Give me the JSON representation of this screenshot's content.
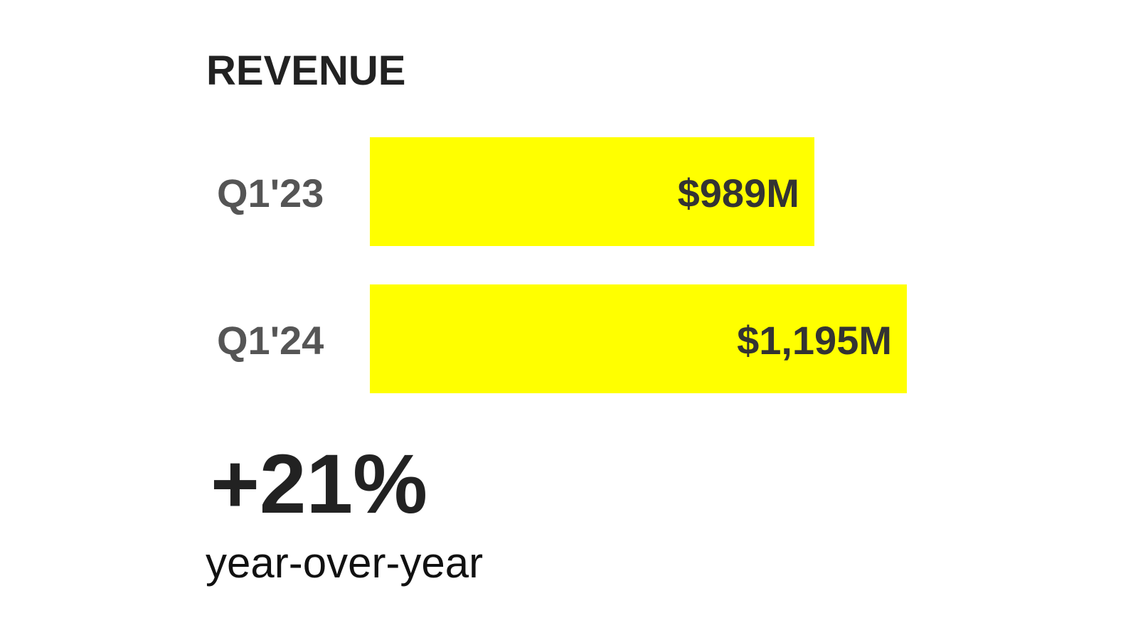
{
  "chart_data": {
    "type": "bar",
    "orientation": "horizontal",
    "title": "REVENUE",
    "categories": [
      "Q1'23",
      "Q1'24"
    ],
    "values": [
      989,
      1195
    ],
    "data_labels": [
      "$989M",
      "$1,195M"
    ],
    "unit": "$M",
    "xlim": [
      0,
      1195
    ],
    "grid": false,
    "bar_color": "#FFFF00",
    "annotation": {
      "headline": "+21%",
      "caption": "year-over-year"
    }
  }
}
